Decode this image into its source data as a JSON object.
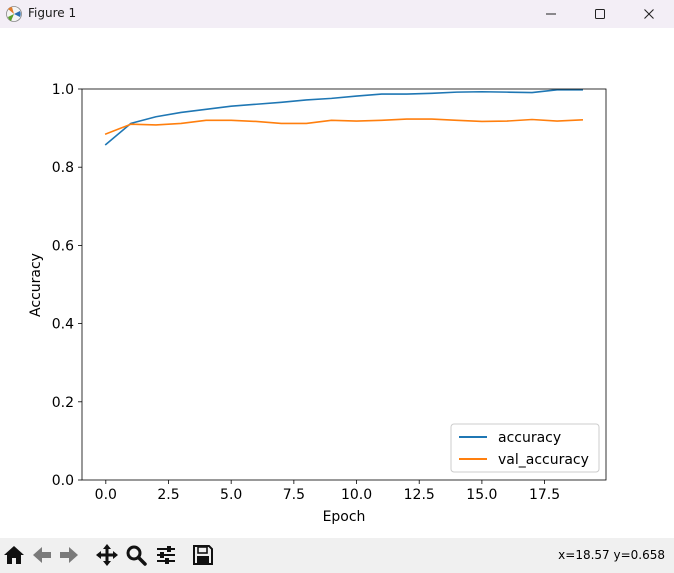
{
  "window": {
    "title": "Figure 1",
    "icons": {
      "app": "matplotlib-figure-icon",
      "minimize": "minimize-icon",
      "maximize": "maximize-icon",
      "close": "close-icon"
    }
  },
  "toolbar": {
    "buttons": [
      {
        "name": "home",
        "icon": "home-icon"
      },
      {
        "name": "back",
        "icon": "arrow-left-icon"
      },
      {
        "name": "forward",
        "icon": "arrow-right-icon"
      },
      {
        "name": "pan",
        "icon": "move-icon"
      },
      {
        "name": "zoom",
        "icon": "magnifier-icon"
      },
      {
        "name": "subplots",
        "icon": "sliders-icon"
      },
      {
        "name": "save",
        "icon": "floppy-disk-icon"
      }
    ],
    "coords": "x=18.57 y=0.658"
  },
  "chart_data": {
    "type": "line",
    "title": "",
    "xlabel": "Epoch",
    "ylabel": "Accuracy",
    "xlim": [
      -0.95,
      19.95
    ],
    "ylim": [
      0.0,
      1.0
    ],
    "xticks": [
      "0.0",
      "2.5",
      "5.0",
      "7.5",
      "10.0",
      "12.5",
      "15.0",
      "17.5"
    ],
    "yticks": [
      "0.0",
      "0.2",
      "0.4",
      "0.6",
      "0.8",
      "1.0"
    ],
    "grid": false,
    "legend": "lower-right",
    "x": [
      0,
      1,
      2,
      3,
      4,
      5,
      6,
      7,
      8,
      9,
      10,
      11,
      12,
      13,
      14,
      15,
      16,
      17,
      18,
      19
    ],
    "series": [
      {
        "name": "accuracy",
        "color": "#1f77b4",
        "values": [
          0.858,
          0.912,
          0.929,
          0.94,
          0.948,
          0.956,
          0.961,
          0.966,
          0.972,
          0.976,
          0.982,
          0.987,
          0.987,
          0.989,
          0.992,
          0.993,
          0.992,
          0.991,
          0.998,
          0.998
        ]
      },
      {
        "name": "val_accuracy",
        "color": "#ff7f0e",
        "values": [
          0.885,
          0.91,
          0.908,
          0.912,
          0.92,
          0.92,
          0.917,
          0.912,
          0.912,
          0.92,
          0.918,
          0.92,
          0.923,
          0.923,
          0.92,
          0.917,
          0.918,
          0.922,
          0.918,
          0.921
        ]
      }
    ]
  }
}
